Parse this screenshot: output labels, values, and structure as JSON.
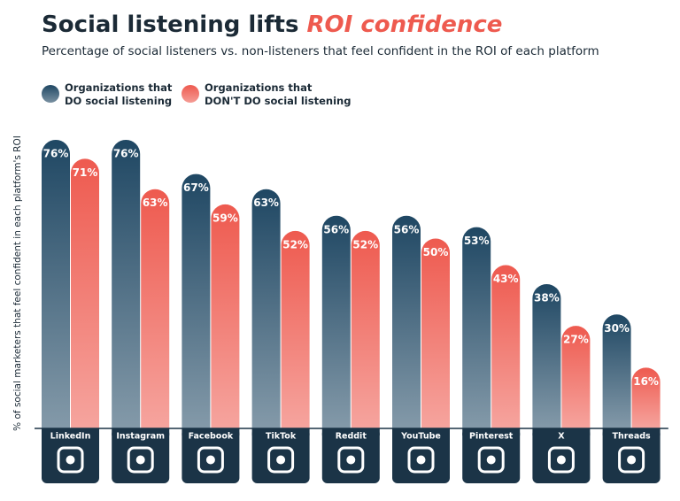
{
  "chart_data": {
    "type": "bar",
    "title": "Social listening lifts",
    "title_highlight": "ROI confidence",
    "subtitle": "Percentage of social listeners vs. non-listeners that feel confident in the ROI of each platform",
    "y_label": "% of social marketers that feel confident in each platform's ROI",
    "categories": [
      "LinkedIn",
      "Instagram",
      "Facebook",
      "TikTok",
      "Reddit",
      "YouTube",
      "Pinterest",
      "X",
      "Threads"
    ],
    "series": [
      {
        "name": "Organizations that\nDO social listening",
        "color": "#1f4763",
        "values": [
          76,
          76,
          67,
          63,
          56,
          56,
          53,
          38,
          30
        ],
        "value_labels": [
          "76%",
          "76%",
          "67%",
          "63%",
          "56%",
          "56%",
          "53%",
          "38%",
          "30%"
        ]
      },
      {
        "name": "Organizations that\nDON'T DO social listening",
        "color": "#ee5a4f",
        "values": [
          71,
          63,
          59,
          52,
          52,
          50,
          43,
          27,
          16
        ],
        "value_labels": [
          "71%",
          "63%",
          "59%",
          "52%",
          "52%",
          "50%",
          "43%",
          "27%",
          "16%"
        ]
      }
    ],
    "ylim": [
      0,
      100
    ]
  }
}
